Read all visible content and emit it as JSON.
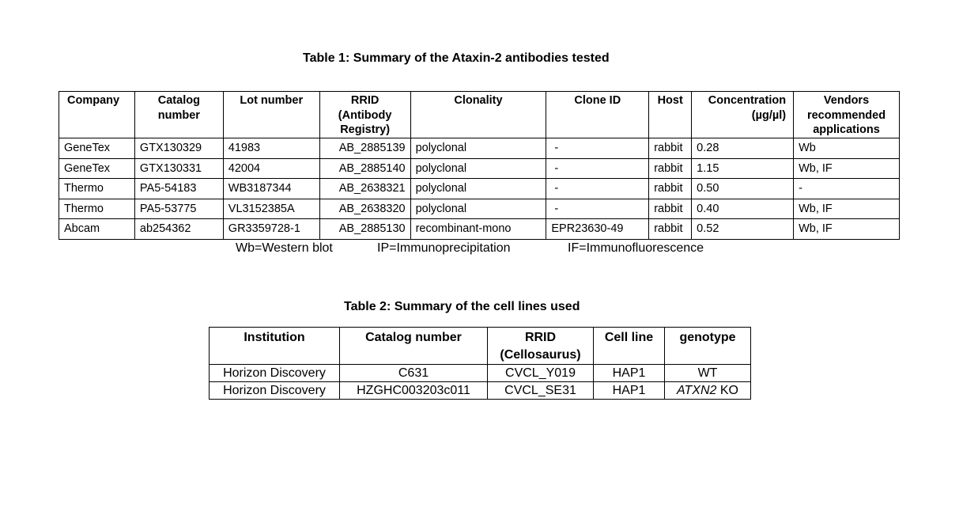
{
  "table1": {
    "title": "Table 1: Summary of the Ataxin-2 antibodies tested",
    "headers": [
      {
        "lines": [
          "Company"
        ]
      },
      {
        "lines": [
          "Catalog",
          "number"
        ]
      },
      {
        "lines": [
          "Lot number"
        ]
      },
      {
        "lines": [
          "RRID",
          "(Antibody",
          "Registry)"
        ]
      },
      {
        "lines": [
          "Clonality"
        ]
      },
      {
        "lines": [
          "Clone ID"
        ]
      },
      {
        "lines": [
          "Host"
        ]
      },
      {
        "lines": [
          "Concentration",
          "(µg/µl)"
        ]
      },
      {
        "lines": [
          "Vendors",
          "recommended",
          "applications"
        ]
      }
    ],
    "rows": [
      [
        "GeneTex",
        "GTX130329",
        "41983",
        "AB_2885139",
        "polyclonal",
        "-",
        "rabbit",
        "0.28",
        "Wb"
      ],
      [
        "GeneTex",
        "GTX130331",
        "42004",
        "AB_2885140",
        "polyclonal",
        "-",
        "rabbit",
        "1.15",
        "Wb, IF"
      ],
      [
        "Thermo",
        "PA5-54183",
        "WB3187344",
        "AB_2638321",
        "polyclonal",
        "-",
        "rabbit",
        "0.50",
        "-"
      ],
      [
        "Thermo",
        "PA5-53775",
        "VL3152385A",
        "AB_2638320",
        "polyclonal",
        "-",
        "rabbit",
        "0.40",
        "Wb, IF"
      ],
      [
        "Abcam",
        "ab254362",
        "GR3359728-1",
        "AB_2885130",
        "recombinant-mono",
        "EPR23630-49",
        "rabbit",
        "0.52",
        "Wb, IF"
      ]
    ],
    "legend": {
      "wb": "Wb=Western blot",
      "ip": "IP=Immunoprecipitation",
      "if": "IF=Immunofluorescence"
    }
  },
  "table2": {
    "title": "Table 2: Summary of the cell lines used",
    "headers": [
      {
        "lines": [
          "Institution"
        ]
      },
      {
        "lines": [
          "Catalog number"
        ]
      },
      {
        "lines": [
          "RRID",
          "(Cellosaurus)"
        ]
      },
      {
        "lines": [
          "Cell line"
        ]
      },
      {
        "lines": [
          "genotype"
        ]
      }
    ],
    "rows": [
      [
        "Horizon Discovery",
        "C631",
        "CVCL_Y019",
        "HAP1",
        "WT"
      ],
      [
        "Horizon Discovery",
        "HZGHC003203c011",
        "CVCL_SE31",
        "HAP1",
        "ATXN2 KO"
      ]
    ],
    "genotype_gene": "ATXN2",
    "genotype_suffix": " KO"
  }
}
